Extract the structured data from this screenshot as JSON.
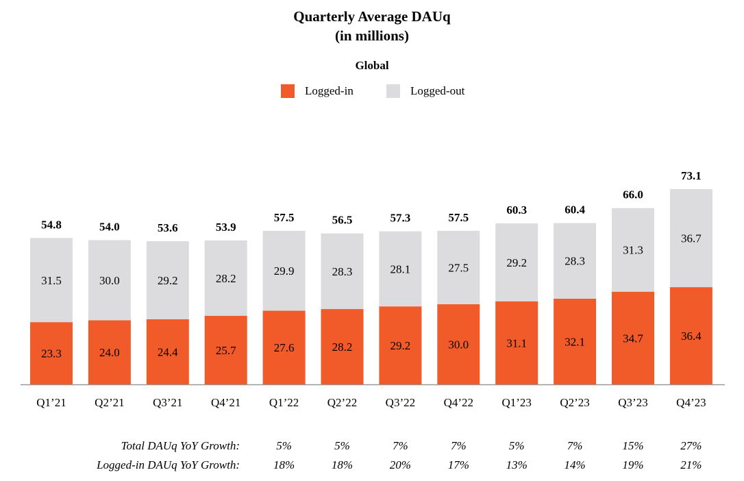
{
  "title": {
    "line1": "Quarterly Average DAUq",
    "line2": "(in millions)"
  },
  "subtitle": "Global",
  "colors": {
    "logged_in": "#f15a29",
    "logged_out": "#dcdcde",
    "axis": "#999999"
  },
  "chart_data": {
    "type": "bar",
    "stacked": true,
    "categories": [
      "Q1’21",
      "Q2’21",
      "Q3’21",
      "Q4’21",
      "Q1’22",
      "Q2’22",
      "Q3’22",
      "Q4’22",
      "Q1’23",
      "Q2’23",
      "Q3’23",
      "Q4’23"
    ],
    "series": [
      {
        "name": "Logged-in",
        "values": [
          23.3,
          24.0,
          24.4,
          25.7,
          27.6,
          28.2,
          29.2,
          30.0,
          31.1,
          32.1,
          34.7,
          36.4
        ]
      },
      {
        "name": "Logged-out",
        "values": [
          31.5,
          30.0,
          29.2,
          28.2,
          29.9,
          28.3,
          28.1,
          27.5,
          29.2,
          28.3,
          31.3,
          36.7
        ]
      }
    ],
    "totals": [
      "54.8",
      "54.0",
      "53.6",
      "53.9",
      "57.5",
      "56.5",
      "57.3",
      "57.5",
      "60.3",
      "60.4",
      "66.0",
      "73.1"
    ],
    "value_labels": {
      "Logged-in": [
        "23.3",
        "24.0",
        "24.4",
        "25.7",
        "27.6",
        "28.2",
        "29.2",
        "30.0",
        "31.1",
        "32.1",
        "34.7",
        "36.4"
      ],
      "Logged-out": [
        "31.5",
        "30.0",
        "29.2",
        "28.2",
        "29.9",
        "28.3",
        "28.1",
        "27.5",
        "29.2",
        "28.3",
        "31.3",
        "36.7"
      ]
    },
    "ylim": [
      0,
      73.1
    ],
    "legend_position": "top-center",
    "grid": false
  },
  "growth_table": {
    "rows": [
      {
        "label": "Total DAUq YoY Growth:",
        "values": [
          "5%",
          "5%",
          "7%",
          "7%",
          "5%",
          "7%",
          "15%",
          "27%"
        ]
      },
      {
        "label": "Logged-in DAUq YoY Growth:",
        "values": [
          "18%",
          "18%",
          "20%",
          "17%",
          "13%",
          "14%",
          "19%",
          "21%"
        ]
      }
    ]
  }
}
